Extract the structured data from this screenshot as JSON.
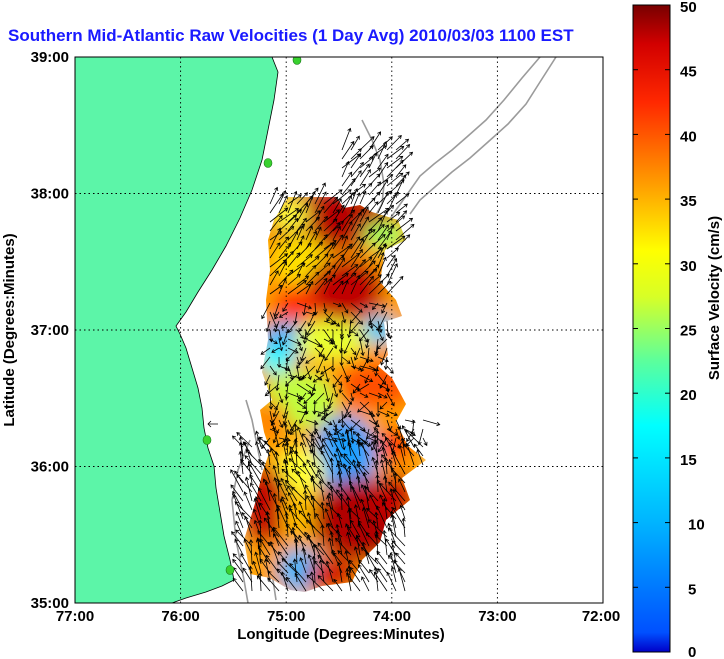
{
  "title": "Southern Mid-Atlantic Raw Velocities (1 Day Avg) 2010/03/03 1100 EST",
  "map": {
    "xlabel": "Longitude (Degrees:Minutes)",
    "ylabel": "Latitude (Degrees:Minutes)",
    "lon_range": [
      -77,
      -72
    ],
    "lat_range": [
      35,
      39
    ],
    "x_ticks": [
      "77:00",
      "76:00",
      "75:00",
      "74:00",
      "73:00",
      "72:00"
    ],
    "y_ticks": [
      "39:00",
      "38:00",
      "37:00",
      "36:00",
      "35:00"
    ],
    "grid": true,
    "land_color": "#5cf5a8",
    "water_color": "#ffffff",
    "station_color": "#39d12f"
  },
  "colorbar": {
    "label": "Surface Velocity (cm/s)",
    "min": 0,
    "max": 50,
    "ticks": [
      "50",
      "45",
      "40",
      "35",
      "30",
      "25",
      "20",
      "15",
      "10",
      "5",
      "0"
    ],
    "colormap": "jet"
  },
  "chart_data": {
    "type": "heatmap",
    "variable": "surface current speed",
    "units": "cm/s",
    "value_range": [
      0,
      50
    ],
    "regions": [
      {
        "lon": -74.85,
        "lat": 37.85,
        "speed": 48
      },
      {
        "lon": -74.55,
        "lat": 37.6,
        "speed": 45
      },
      {
        "lon": -75.1,
        "lat": 37.4,
        "speed": 30
      },
      {
        "lon": -74.9,
        "lat": 37.2,
        "speed": 38
      },
      {
        "lon": -74.3,
        "lat": 37.2,
        "speed": 47
      },
      {
        "lon": -75.0,
        "lat": 36.9,
        "speed": 12
      },
      {
        "lon": -74.4,
        "lat": 36.8,
        "speed": 22
      },
      {
        "lon": -74.6,
        "lat": 36.3,
        "speed": 20
      },
      {
        "lon": -74.65,
        "lat": 36.05,
        "speed": 10
      },
      {
        "lon": -74.3,
        "lat": 35.8,
        "speed": 40
      },
      {
        "lon": -75.3,
        "lat": 35.6,
        "speed": 45
      },
      {
        "lon": -74.6,
        "lat": 35.5,
        "speed": 46
      }
    ]
  }
}
